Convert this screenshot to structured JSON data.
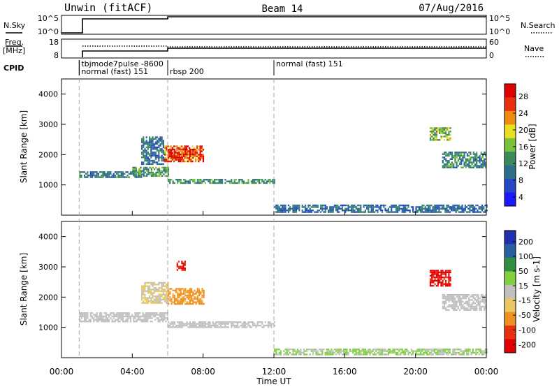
{
  "header": {
    "station": "Unwin (fitACF)",
    "beam": "Beam 14",
    "date": "07/Aug/2016"
  },
  "left_labels": {
    "nsky": "N.Sky",
    "freq_top": "Freq.",
    "freq_unit": "[MHz]",
    "cpid": "CPID"
  },
  "right_labels": {
    "nsearch": "N.Search",
    "nave": "Nave"
  },
  "nsky_panel": {
    "left_ticks": [
      "10^5",
      "10^0"
    ],
    "right_ticks": [
      "10^5",
      "10^0"
    ]
  },
  "freq_panel": {
    "left_ticks": [
      "18",
      "8"
    ],
    "right_ticks": [
      "60",
      "0"
    ]
  },
  "cpid_labels": [
    {
      "text": "tbjmode7pulse -8600",
      "time": 1.0,
      "row": 0
    },
    {
      "text": "normal (fast) 151",
      "time": 1.0,
      "row": 1
    },
    {
      "text": "rbsp 200",
      "time": 6.0,
      "row": 1
    },
    {
      "text": "normal (fast) 151",
      "time": 12.0,
      "row": 0
    }
  ],
  "x_axis": {
    "label": "Time UT",
    "ticks": [
      "00:00",
      "04:00",
      "08:00",
      "12:00",
      "16:00",
      "20:00",
      "00:00"
    ]
  },
  "y_axis": {
    "label": "Slant Range [km]",
    "ticks": [
      "4000",
      "3000",
      "2000",
      "1000"
    ]
  },
  "power_colorbar": {
    "label": "Power [dB]",
    "ticks": [
      "28",
      "24",
      "20",
      "16",
      "12",
      "8",
      "4"
    ]
  },
  "velocity_colorbar": {
    "label": "Velocity [m s-1]",
    "ticks": [
      "200",
      "100",
      "50",
      "15",
      "-15",
      "-50",
      "-100",
      "-200"
    ]
  },
  "colors": {
    "power": [
      "#1a1aff",
      "#2448c8",
      "#2d6e8a",
      "#3a8a5a",
      "#7ac13a",
      "#e8e020",
      "#f08a10",
      "#e83010",
      "#e00000"
    ],
    "velocity": [
      "#2030b0",
      "#2a60a0",
      "#309040",
      "#80d040",
      "#c0c0c0",
      "#e8c860",
      "#f09020",
      "#e83010",
      "#e00000"
    ]
  },
  "chart_data": [
    {
      "type": "heatmap",
      "panel": "power",
      "x_range_hours": [
        0,
        24
      ],
      "y_range_km": [
        0,
        4500
      ],
      "value_range_db": [
        0,
        32
      ],
      "patches": [
        {
          "t0": 1.0,
          "t1": 4.5,
          "r0": 1250,
          "r1": 1450,
          "val": 10
        },
        {
          "t0": 4.0,
          "t1": 6.0,
          "r0": 1300,
          "r1": 1600,
          "val": 13
        },
        {
          "t0": 4.5,
          "t1": 5.8,
          "r0": 1700,
          "r1": 2600,
          "val": 9
        },
        {
          "t0": 5.8,
          "t1": 8.0,
          "r0": 1800,
          "r1": 2300,
          "val": 26
        },
        {
          "t0": 6.0,
          "t1": 7.5,
          "r0": 1900,
          "r1": 2200,
          "val": 30
        },
        {
          "t0": 6.0,
          "t1": 12.0,
          "r0": 1050,
          "r1": 1200,
          "val": 12
        },
        {
          "t0": 12.0,
          "t1": 24.0,
          "r0": 100,
          "r1": 350,
          "val": 8
        },
        {
          "t0": 20.8,
          "t1": 22.0,
          "r0": 2500,
          "r1": 2900,
          "val": 16
        },
        {
          "t0": 21.5,
          "t1": 24.0,
          "r0": 1600,
          "r1": 2100,
          "val": 11
        }
      ]
    },
    {
      "type": "heatmap",
      "panel": "velocity",
      "x_range_hours": [
        0,
        24
      ],
      "y_range_km": [
        0,
        4500
      ],
      "value_range_ms": [
        -250,
        250
      ],
      "patches": [
        {
          "t0": 1.0,
          "t1": 6.0,
          "r0": 1200,
          "r1": 1500,
          "val": 0
        },
        {
          "t0": 4.5,
          "t1": 6.0,
          "r0": 1800,
          "r1": 2500,
          "val": -30
        },
        {
          "t0": 6.0,
          "t1": 8.0,
          "r0": 1800,
          "r1": 2300,
          "val": -100
        },
        {
          "t0": 6.5,
          "t1": 7.0,
          "r0": 2900,
          "r1": 3200,
          "val": -200
        },
        {
          "t0": 6.0,
          "t1": 12.0,
          "r0": 1000,
          "r1": 1200,
          "val": -10
        },
        {
          "t0": 12.0,
          "t1": 24.0,
          "r0": 100,
          "r1": 300,
          "val": 30
        },
        {
          "t0": 20.8,
          "t1": 22.0,
          "r0": 2400,
          "r1": 2900,
          "val": -220
        },
        {
          "t0": 21.5,
          "t1": 24.0,
          "r0": 1600,
          "r1": 2100,
          "val": 0
        }
      ]
    }
  ]
}
